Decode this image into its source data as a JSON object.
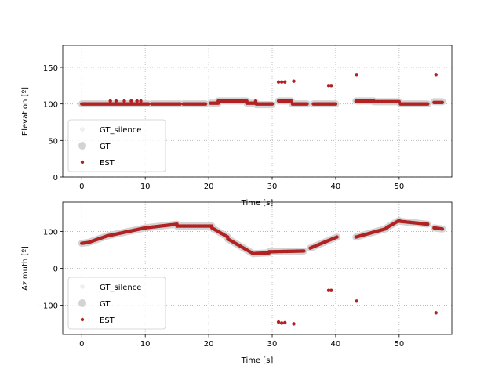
{
  "chart_data": [
    {
      "type": "scatter",
      "xlabel": "Time [s]",
      "ylabel": "Elevation [º]",
      "xlim": [
        -3,
        58.3
      ],
      "ylim": [
        0,
        180
      ],
      "xticks": [
        "0",
        "10",
        "20",
        "30",
        "40",
        "50"
      ],
      "yticks": [
        "0",
        "50",
        "100",
        "150"
      ],
      "xtick_values": [
        0,
        10,
        20,
        30,
        40,
        50
      ],
      "ytick_values": [
        0,
        50,
        100,
        150
      ],
      "grid": true,
      "legend_placement": "lower-left",
      "legend": [
        "GT_silence",
        "GT",
        "EST"
      ],
      "segments": [
        {
          "x0": 0.0,
          "x1": 10.5,
          "gt": 100,
          "est": 100
        },
        {
          "x0": 11.0,
          "x1": 15.5,
          "gt": 100,
          "est": 100
        },
        {
          "x0": 16.0,
          "x1": 19.5,
          "gt": 100,
          "est": 100
        },
        {
          "x0": 20.3,
          "x1": 21.5,
          "gt": 101,
          "est": 101
        },
        {
          "x0": 21.5,
          "x1": 26.0,
          "gt": 104,
          "est": 104
        },
        {
          "x0": 26.0,
          "x1": 27.5,
          "gt": 101,
          "est": 101
        },
        {
          "x0": 27.5,
          "x1": 30.0,
          "gt": 99,
          "est": 100
        },
        {
          "x0": 31.0,
          "x1": 33.0,
          "gt": 104,
          "est": 104
        },
        {
          "x0": 33.2,
          "x1": 35.5,
          "gt": 100,
          "est": 100
        },
        {
          "x0": 36.5,
          "x1": 40.0,
          "gt": 100,
          "est": 100
        },
        {
          "x0": 43.2,
          "x1": 46.0,
          "gt": 104,
          "est": 104
        },
        {
          "x0": 46.0,
          "x1": 50.0,
          "gt": 103,
          "est": 103
        },
        {
          "x0": 50.2,
          "x1": 54.5,
          "gt": 100,
          "est": 100
        },
        {
          "x0": 55.5,
          "x1": 56.8,
          "gt": 103,
          "est": 102
        }
      ],
      "est_outliers": [
        {
          "x": 4.5,
          "y": 104
        },
        {
          "x": 5.4,
          "y": 104
        },
        {
          "x": 6.7,
          "y": 104
        },
        {
          "x": 7.8,
          "y": 104
        },
        {
          "x": 8.7,
          "y": 104
        },
        {
          "x": 9.3,
          "y": 104
        },
        {
          "x": 27.4,
          "y": 104
        },
        {
          "x": 31.0,
          "y": 130
        },
        {
          "x": 31.5,
          "y": 130
        },
        {
          "x": 32.0,
          "y": 130
        },
        {
          "x": 33.4,
          "y": 131
        },
        {
          "x": 38.9,
          "y": 125
        },
        {
          "x": 39.3,
          "y": 125
        },
        {
          "x": 43.3,
          "y": 140
        },
        {
          "x": 55.8,
          "y": 140
        }
      ]
    },
    {
      "type": "scatter",
      "xlabel": "Time [s]",
      "ylabel": "Azimuth [º]",
      "xlim": [
        -3,
        58.3
      ],
      "ylim": [
        -180,
        180
      ],
      "xticks": [
        "0",
        "10",
        "20",
        "30",
        "40",
        "50"
      ],
      "yticks": [
        "−100",
        "0",
        "100"
      ],
      "xtick_values": [
        0,
        10,
        20,
        30,
        40,
        50
      ],
      "ytick_values": [
        -100,
        0,
        100
      ],
      "grid": true,
      "legend_placement": "lower-left",
      "legend": [
        "GT_silence",
        "GT",
        "EST"
      ],
      "segments": [
        {
          "x0": 0.0,
          "x1": 1.0,
          "y0": 68,
          "y1": 70
        },
        {
          "x0": 1.0,
          "x1": 4.0,
          "y0": 70,
          "y1": 88
        },
        {
          "x0": 4.0,
          "x1": 10.0,
          "y0": 88,
          "y1": 110
        },
        {
          "x0": 10.0,
          "x1": 15.0,
          "y0": 110,
          "y1": 120
        },
        {
          "x0": 15.0,
          "x1": 20.5,
          "y0": 115,
          "y1": 115
        },
        {
          "x0": 20.5,
          "x1": 23.0,
          "y0": 110,
          "y1": 85
        },
        {
          "x0": 23.0,
          "x1": 27.0,
          "y0": 80,
          "y1": 40
        },
        {
          "x0": 27.0,
          "x1": 29.5,
          "y0": 40,
          "y1": 42
        },
        {
          "x0": 29.5,
          "x1": 35.0,
          "y0": 45,
          "y1": 47
        },
        {
          "x0": 36.0,
          "x1": 40.2,
          "y0": 55,
          "y1": 85
        },
        {
          "x0": 43.2,
          "x1": 48.0,
          "y0": 85,
          "y1": 108
        },
        {
          "x0": 48.0,
          "x1": 50.0,
          "y0": 110,
          "y1": 130
        },
        {
          "x0": 50.0,
          "x1": 54.5,
          "y0": 128,
          "y1": 120
        },
        {
          "x0": 55.5,
          "x1": 56.8,
          "y0": 110,
          "y1": 107
        }
      ],
      "est_outliers": [
        {
          "x": 31.0,
          "y": -146
        },
        {
          "x": 31.5,
          "y": -149
        },
        {
          "x": 32.0,
          "y": -148
        },
        {
          "x": 33.4,
          "y": -151
        },
        {
          "x": 38.9,
          "y": -60
        },
        {
          "x": 39.3,
          "y": -60
        },
        {
          "x": 43.3,
          "y": -89
        },
        {
          "x": 55.8,
          "y": -121
        }
      ]
    }
  ],
  "colors": {
    "gt": "#d3d3d3",
    "gt_silence": "#f2f2f2",
    "est": "#b22222",
    "grid": "#b0b0b0",
    "axis": "#000000"
  }
}
